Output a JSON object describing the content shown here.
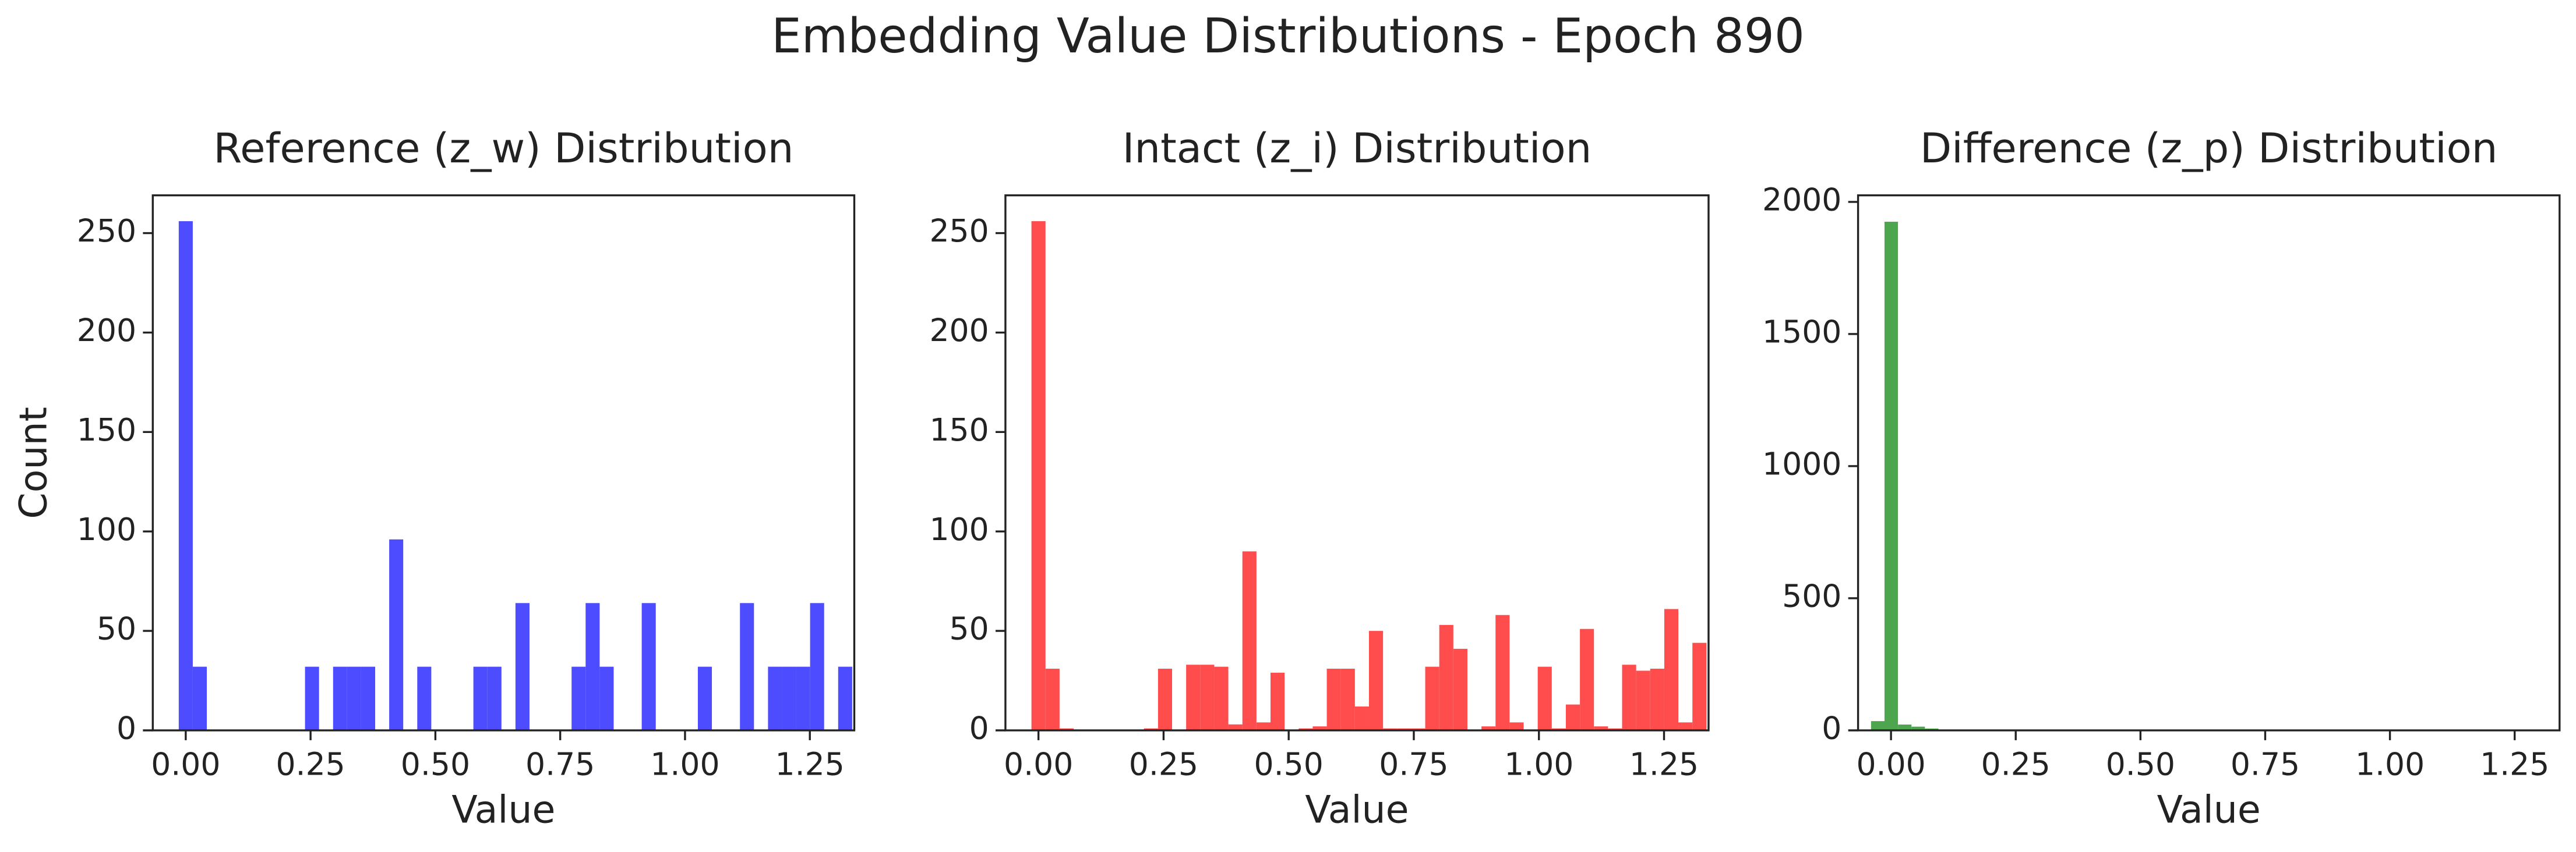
{
  "title": "Embedding Value Distributions - Epoch 890",
  "chart_data": [
    {
      "type": "histogram",
      "title": "Reference (z_w) Distribution",
      "x_label": "Value",
      "y_label": "Count",
      "color": "#4d4dff",
      "bins": [
        -0.014,
        0.0141,
        0.0422,
        0.0703,
        0.0984,
        0.1265,
        0.1546,
        0.1827,
        0.2108,
        0.2389,
        0.267,
        0.2951,
        0.3232,
        0.3513,
        0.3794,
        0.4075,
        0.4356,
        0.4637,
        0.4918,
        0.5199,
        0.548,
        0.5761,
        0.6042,
        0.6323,
        0.6604,
        0.6885,
        0.7166,
        0.7447,
        0.7728,
        0.8009,
        0.829,
        0.8571,
        0.8852,
        0.9133,
        0.9414,
        0.9695,
        0.9976,
        1.0257,
        1.0538,
        1.0819,
        1.11,
        1.1381,
        1.1662,
        1.1943,
        1.2224,
        1.2505,
        1.2786,
        1.3067,
        1.3348
      ],
      "values": [
        256,
        32,
        0,
        0,
        0,
        0,
        0,
        0,
        0,
        32,
        0,
        32,
        32,
        32,
        0,
        96,
        0,
        32,
        0,
        0,
        0,
        32,
        32,
        0,
        64,
        0,
        0,
        0,
        32,
        64,
        32,
        0,
        0,
        64,
        0,
        0,
        0,
        32,
        0,
        0,
        64,
        0,
        32,
        32,
        32,
        64,
        0,
        32
      ],
      "xlim": [
        -0.066,
        1.339
      ],
      "ylim": [
        0,
        269
      ],
      "xticks": [
        {
          "value": 0,
          "label": "0.00"
        },
        0.25,
        {
          "value": 0.5,
          "label": "0.50"
        },
        0.75,
        {
          "value": 1,
          "label": "1.00"
        },
        1.25
      ],
      "yticks": [
        0,
        50,
        100,
        150,
        200,
        250
      ]
    },
    {
      "type": "histogram",
      "title": "Intact (z_i) Distribution",
      "x_label": "Value",
      "color": "#ff4d4d",
      "bins": [
        -0.014,
        0.0141,
        0.0422,
        0.0703,
        0.0984,
        0.1265,
        0.1546,
        0.1827,
        0.2108,
        0.2389,
        0.267,
        0.2951,
        0.3232,
        0.3513,
        0.3794,
        0.4075,
        0.4356,
        0.4637,
        0.4918,
        0.5199,
        0.548,
        0.5761,
        0.6042,
        0.6323,
        0.6604,
        0.6885,
        0.7166,
        0.7447,
        0.7728,
        0.8009,
        0.829,
        0.8571,
        0.8852,
        0.9133,
        0.9414,
        0.9695,
        0.9976,
        1.0257,
        1.0538,
        1.0819,
        1.11,
        1.1381,
        1.1662,
        1.1943,
        1.2224,
        1.2505,
        1.2786,
        1.3067,
        1.3348
      ],
      "values": [
        256,
        31,
        1,
        0,
        0,
        0,
        0,
        0,
        1,
        31,
        0,
        33,
        33,
        32,
        3,
        90,
        4,
        29,
        0,
        1,
        2,
        31,
        31,
        12,
        50,
        1,
        1,
        1,
        32,
        53,
        41,
        0,
        2,
        58,
        4,
        0,
        32,
        1,
        13,
        51,
        2,
        1,
        33,
        30,
        31,
        61,
        4,
        44
      ],
      "xlim": [
        -0.066,
        1.339
      ],
      "ylim": [
        0,
        269
      ],
      "xticks": [
        {
          "value": 0,
          "label": "0.00"
        },
        0.25,
        {
          "value": 0.5,
          "label": "0.50"
        },
        0.75,
        {
          "value": 1,
          "label": "1.00"
        },
        1.25
      ],
      "yticks": [
        0,
        50,
        100,
        150,
        200,
        250
      ]
    },
    {
      "type": "histogram",
      "title": "Difference (z_p) Distribution",
      "x_label": "Value",
      "color": "#4da64d",
      "bins": [
        -0.04,
        -0.013,
        0.014,
        0.041,
        0.068,
        0.095,
        0.122,
        0.149,
        0.176,
        0.203,
        0.23,
        0.257,
        0.284,
        0.311,
        0.338,
        0.365,
        0.392,
        0.419,
        0.446,
        0.473,
        0.5,
        0.527,
        0.554,
        0.581,
        0.608,
        0.635,
        0.662,
        0.689,
        0.716,
        0.743,
        0.77,
        0.797,
        0.824,
        0.851,
        0.878,
        0.905,
        0.932,
        0.959,
        0.986,
        1.013,
        1.04,
        1.067,
        1.094,
        1.121,
        1.148,
        1.175,
        1.202,
        1.229,
        1.256,
        1.283,
        1.31
      ],
      "values": [
        35,
        1925,
        22,
        14,
        7,
        3,
        1,
        1,
        0,
        0,
        0,
        0,
        0,
        0,
        0,
        0,
        0,
        0,
        0,
        0,
        0,
        0,
        0,
        0,
        0,
        0,
        0,
        0,
        0,
        0,
        0,
        0,
        0,
        0,
        0,
        0,
        0,
        0,
        0,
        0,
        0,
        0,
        0,
        0,
        0,
        0,
        0,
        0,
        0,
        0
      ],
      "xlim": [
        -0.066,
        1.34
      ],
      "ylim": [
        0,
        2025
      ],
      "xticks": [
        {
          "value": 0,
          "label": "0.00"
        },
        0.25,
        {
          "value": 0.5,
          "label": "0.50"
        },
        0.75,
        {
          "value": 1,
          "label": "1.00"
        },
        1.25
      ],
      "yticks": [
        0,
        500,
        1000,
        1500,
        2000
      ]
    }
  ]
}
